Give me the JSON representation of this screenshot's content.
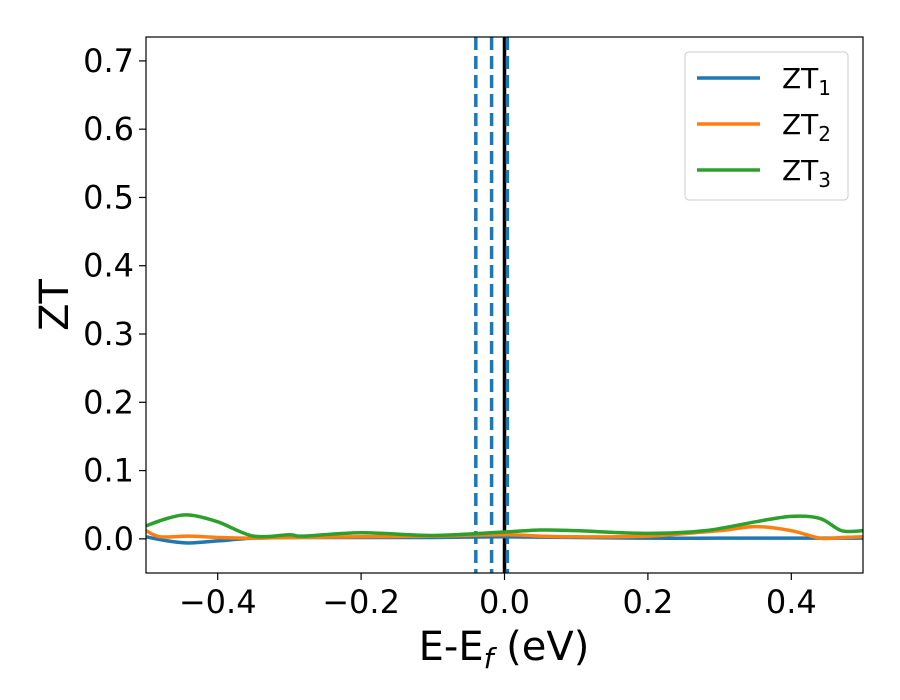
{
  "chart_data": {
    "type": "line",
    "ylabel": "ZT",
    "xlabel_main": "E-E",
    "xlabel_sub": "f",
    "xlabel_tail": " (eV)",
    "xlim": [
      -0.5,
      0.5
    ],
    "ylim": [
      -0.05,
      0.735
    ],
    "xticks": [
      -0.4,
      -0.2,
      0.0,
      0.2,
      0.4
    ],
    "xtick_labels": [
      "−0.4",
      "−0.2",
      "0.0",
      "0.2",
      "0.4"
    ],
    "yticks": [
      0.0,
      0.1,
      0.2,
      0.3,
      0.4,
      0.5,
      0.6,
      0.7
    ],
    "ytick_labels": [
      "0.0",
      "0.1",
      "0.2",
      "0.3",
      "0.4",
      "0.5",
      "0.6",
      "0.7"
    ],
    "grid": false,
    "legend_position": "top-right",
    "reference_lines": [
      {
        "x": 0.0,
        "color": "#000000",
        "style": "solid"
      },
      {
        "x": -0.04,
        "color": "#1f77b4",
        "style": "dashed"
      },
      {
        "x": -0.018,
        "color": "#1f77b4",
        "style": "dashed"
      },
      {
        "x": 0.004,
        "color": "#1f77b4",
        "style": "dashed"
      }
    ],
    "series": [
      {
        "name": "ZT",
        "name_sub": "1",
        "color": "#1f77b4",
        "x": [
          -0.5,
          -0.47,
          -0.44,
          -0.4,
          -0.35,
          -0.3,
          -0.2,
          -0.1,
          0.0,
          0.1,
          0.2,
          0.3,
          0.4,
          0.5
        ],
        "y": [
          0.003,
          -0.003,
          -0.006,
          -0.003,
          0.001,
          0.002,
          0.002,
          0.002,
          0.003,
          0.002,
          0.001,
          0.001,
          0.001,
          0.001
        ]
      },
      {
        "name": "ZT",
        "name_sub": "2",
        "color": "#ff7f0e",
        "x": [
          -0.5,
          -0.48,
          -0.44,
          -0.4,
          -0.35,
          -0.3,
          -0.2,
          -0.1,
          0.0,
          0.05,
          0.1,
          0.2,
          0.3,
          0.35,
          0.4,
          0.44,
          0.47,
          0.5
        ],
        "y": [
          0.012,
          0.003,
          0.004,
          0.002,
          0.001,
          0.002,
          0.003,
          0.004,
          0.006,
          0.004,
          0.003,
          0.004,
          0.012,
          0.018,
          0.012,
          0.001,
          0.002,
          0.003
        ]
      },
      {
        "name": "ZT",
        "name_sub": "3",
        "color": "#2ca02c",
        "x": [
          -0.5,
          -0.47,
          -0.44,
          -0.4,
          -0.35,
          -0.3,
          -0.28,
          -0.2,
          -0.1,
          0.0,
          0.05,
          0.1,
          0.2,
          0.28,
          0.35,
          0.4,
          0.44,
          0.47,
          0.5
        ],
        "y": [
          0.019,
          0.03,
          0.035,
          0.025,
          0.004,
          0.006,
          0.004,
          0.009,
          0.005,
          0.01,
          0.013,
          0.012,
          0.008,
          0.012,
          0.025,
          0.033,
          0.03,
          0.012,
          0.012
        ]
      }
    ]
  }
}
